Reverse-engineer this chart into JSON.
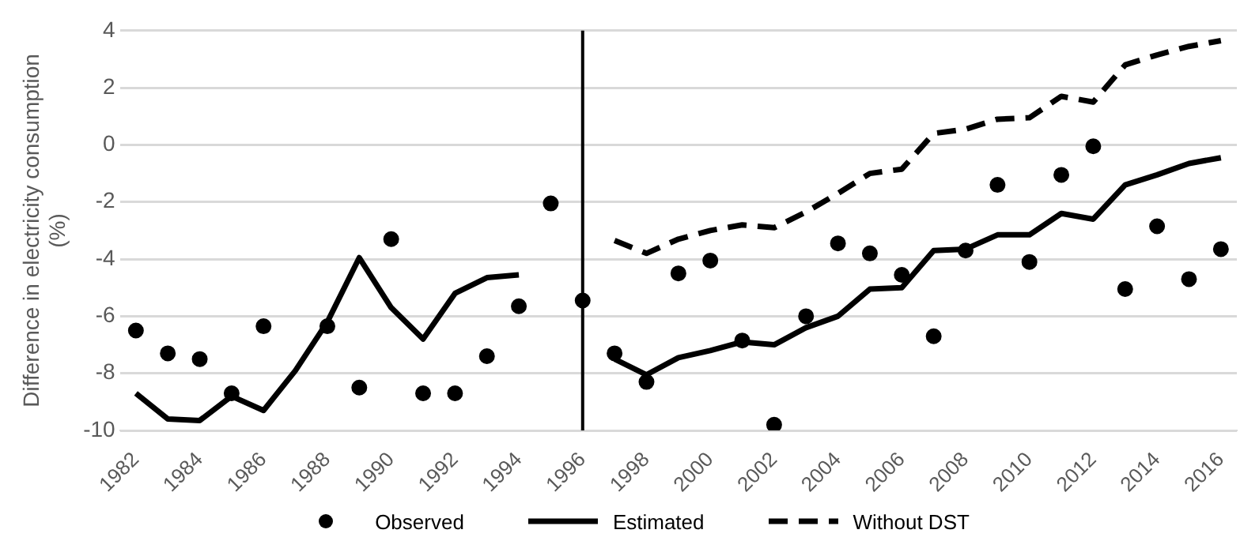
{
  "chart_data": {
    "type": "line",
    "ylabel": "Difference in electricity consumption (%)",
    "x": [
      1982,
      1983,
      1984,
      1985,
      1986,
      1987,
      1988,
      1989,
      1990,
      1991,
      1992,
      1993,
      1994,
      1995,
      1996,
      1997,
      1998,
      1999,
      2000,
      2001,
      2002,
      2003,
      2004,
      2005,
      2006,
      2007,
      2008,
      2009,
      2010,
      2011,
      2012,
      2013,
      2014,
      2015,
      2016
    ],
    "series": [
      {
        "name": "Observed",
        "type": "scatter",
        "marker": "circle",
        "color": "#000000",
        "values": [
          -6.5,
          -7.3,
          -7.5,
          -8.7,
          -6.35,
          null,
          -6.35,
          -8.5,
          -3.3,
          -8.7,
          -8.7,
          -7.4,
          -5.65,
          -2.05,
          -5.45,
          -7.3,
          -8.3,
          -4.5,
          -4.05,
          -6.85,
          -9.8,
          -6.0,
          -3.45,
          -3.8,
          -4.55,
          -6.7,
          -3.7,
          -1.4,
          -4.1,
          -1.05,
          -0.05,
          -5.05,
          -2.85,
          -4.7,
          -3.65
        ]
      },
      {
        "name": "Estimated",
        "type": "line",
        "line_style": "solid",
        "color": "#000000",
        "values": [
          -8.7,
          -9.6,
          -9.65,
          -8.8,
          -9.3,
          -7.9,
          -6.2,
          -3.95,
          -5.7,
          -6.8,
          -5.2,
          -4.65,
          -4.55,
          null,
          null,
          -7.5,
          -8.05,
          -7.45,
          -7.2,
          -6.9,
          -7.0,
          -6.4,
          -6.0,
          -5.05,
          -5.0,
          -3.7,
          -3.65,
          -3.15,
          -3.15,
          -2.4,
          -2.6,
          -1.4,
          -1.05,
          -0.65,
          -0.45
        ]
      },
      {
        "name": "Without DST",
        "type": "line",
        "line_style": "dashed",
        "color": "#000000",
        "values": [
          null,
          null,
          null,
          null,
          null,
          null,
          null,
          null,
          null,
          null,
          null,
          null,
          null,
          null,
          null,
          -3.35,
          -3.8,
          -3.3,
          -3.0,
          -2.8,
          -2.9,
          -2.35,
          -1.7,
          -1.0,
          -0.85,
          0.4,
          0.55,
          0.9,
          0.95,
          1.7,
          1.5,
          2.8,
          3.15,
          3.45,
          3.65
        ]
      }
    ],
    "xlim": [
      1981.5,
      2016.5
    ],
    "xticks": [
      1982,
      1984,
      1986,
      1988,
      1990,
      1992,
      1994,
      1996,
      1998,
      2000,
      2002,
      2004,
      2006,
      2008,
      2010,
      2012,
      2014,
      2016
    ],
    "ylim": [
      -10,
      4
    ],
    "yticks": [
      -10,
      -8,
      -6,
      -4,
      -2,
      0,
      2,
      4
    ],
    "grid": "y",
    "legend": "bottom",
    "ref_lines": [
      {
        "axis": "x",
        "value": 1996,
        "color": "#000000",
        "line_style": "solid"
      }
    ]
  }
}
